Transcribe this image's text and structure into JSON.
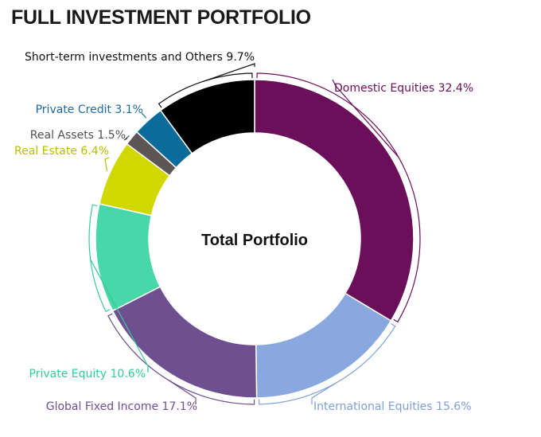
{
  "chart_data": {
    "type": "pie",
    "variant": "donut",
    "title": "FULL INVESTMENT PORTFOLIO",
    "center_label": "Total Portfolio",
    "unit": "%",
    "slices": [
      {
        "label": "Domestic Equities",
        "value": 32.4,
        "value_label": "32.4%",
        "color": "#6b0f5a"
      },
      {
        "label": "International Equities",
        "value": 15.6,
        "value_label": "15.6%",
        "color": "#8aa8e0"
      },
      {
        "label": "Global Fixed Income",
        "value": 17.1,
        "value_label": "17.1%",
        "color": "#6e4f8f"
      },
      {
        "label": "Private Equity",
        "value": 10.6,
        "value_label": "10.6%",
        "color": "#47d7a8"
      },
      {
        "label": "Real Estate",
        "value": 6.4,
        "value_label": "6.4%",
        "color": "#d1d800"
      },
      {
        "label": "Real Assets",
        "value": 1.5,
        "value_label": "1.5%",
        "color": "#5e5656"
      },
      {
        "label": "Private Credit",
        "value": 3.1,
        "value_label": "3.1%",
        "color": "#0b6c9b"
      },
      {
        "label": "Short-term investments and Others",
        "value": 9.7,
        "value_label": "9.7%",
        "color": "#000000"
      }
    ],
    "label_colors": [
      "#6b0f5a",
      "#7f9fd6",
      "#6e4f8f",
      "#34cc96",
      "#b8bd00",
      "#555050",
      "#1e6aa0",
      "#111111"
    ]
  }
}
